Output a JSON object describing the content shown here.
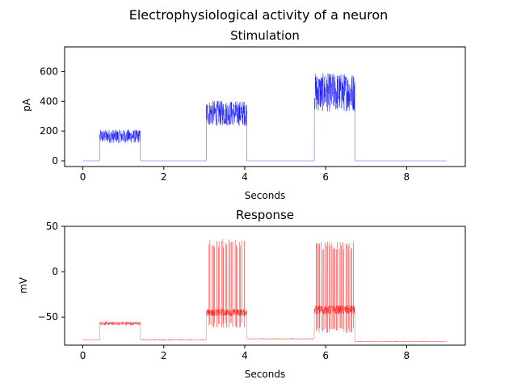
{
  "figure": {
    "suptitle": "Electrophysiological activity of a neuron"
  },
  "chart_data": [
    {
      "type": "line",
      "title": "Stimulation",
      "xlabel": "Seconds",
      "ylabel": "pA",
      "xlim": [
        -0.45,
        9.45
      ],
      "ylim": [
        -38,
        765
      ],
      "xticks": [
        0,
        2,
        4,
        6,
        8
      ],
      "yticks": [
        0,
        200,
        400,
        600
      ],
      "grid": false,
      "color": "#0000ff",
      "series": [
        {
          "segments": [
            {
              "start": 0.0,
              "end": 0.42,
              "level": 0,
              "noise": 0
            },
            {
              "start": 0.42,
              "end": 1.42,
              "level": 165,
              "noise": 45
            },
            {
              "start": 1.42,
              "end": 3.05,
              "level": 0,
              "noise": 0
            },
            {
              "start": 3.05,
              "end": 4.05,
              "level": 320,
              "noise": 85
            },
            {
              "start": 4.05,
              "end": 5.72,
              "level": 0,
              "noise": 0
            },
            {
              "start": 5.72,
              "end": 6.72,
              "level": 460,
              "noise": 130
            },
            {
              "start": 6.72,
              "end": 9.0,
              "level": 0,
              "noise": 0
            }
          ],
          "cap": 730
        }
      ]
    },
    {
      "type": "line",
      "title": "Response",
      "xlabel": "Seconds",
      "ylabel": "mV",
      "xlim": [
        -0.45,
        9.45
      ],
      "ylim": [
        -81,
        50
      ],
      "xticks": [
        0,
        2,
        4,
        6,
        8
      ],
      "yticks": [
        -50,
        0,
        50
      ],
      "grid": false,
      "color": "#ff0000",
      "series": [
        {
          "baseline": -75,
          "segments": [
            {
              "start": 0.0,
              "end": 0.42,
              "level": -75,
              "noise": 0.4
            },
            {
              "start": 0.42,
              "end": 1.42,
              "level": -57,
              "noise": 2
            },
            {
              "start": 1.42,
              "end": 3.05,
              "level": -75,
              "noise": 0.5
            },
            {
              "start": 3.05,
              "end": 4.05,
              "level": -45,
              "noise": 4
            },
            {
              "start": 4.05,
              "end": 5.72,
              "level": -74,
              "noise": 0.5
            },
            {
              "start": 5.72,
              "end": 6.72,
              "level": -42,
              "noise": 5
            },
            {
              "start": 6.72,
              "end": 9.0,
              "level": -77,
              "noise": 0.4
            }
          ],
          "spikes": [
            {
              "start": 3.1,
              "end": 4.0,
              "count": 24,
              "peak": 36,
              "trough": -62
            },
            {
              "start": 5.75,
              "end": 6.7,
              "count": 30,
              "peak": 34,
              "trough": -68
            }
          ]
        }
      ]
    }
  ]
}
